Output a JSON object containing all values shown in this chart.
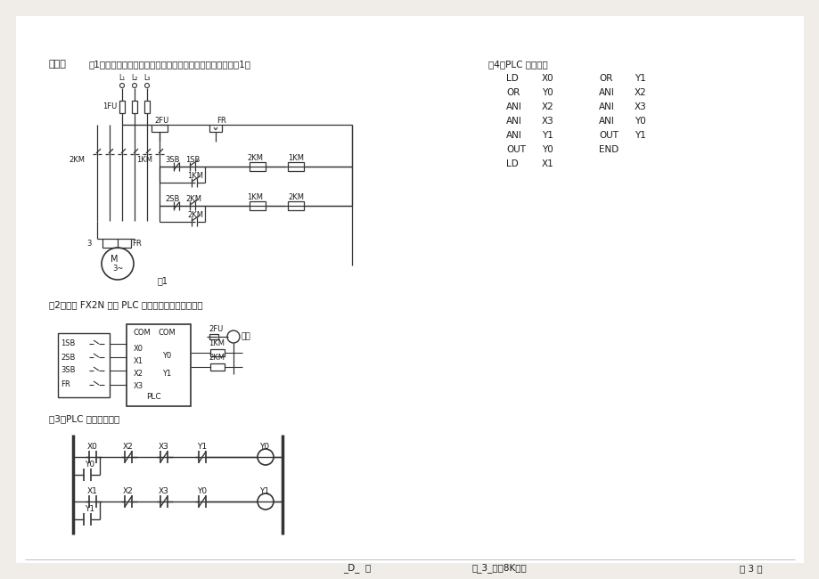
{
  "bg_color": "#f0ede8",
  "page_bg": "#ffffff",
  "plc_instructions": [
    [
      "LD",
      "X0",
      "OR",
      "Y1"
    ],
    [
      "OR",
      "Y0",
      "ANI",
      "X2"
    ],
    [
      "ANI",
      "X2",
      "ANI",
      "X3"
    ],
    [
      "ANI",
      "X3",
      "ANI",
      "Y0"
    ],
    [
      "ANI",
      "Y1",
      "OUT",
      "Y1"
    ],
    [
      "OUT",
      "Y0",
      "END",
      ""
    ],
    [
      "LD",
      "X1",
      "",
      ""
    ]
  ],
  "text_color": "#1a1a1a",
  "line_color": "#333333"
}
